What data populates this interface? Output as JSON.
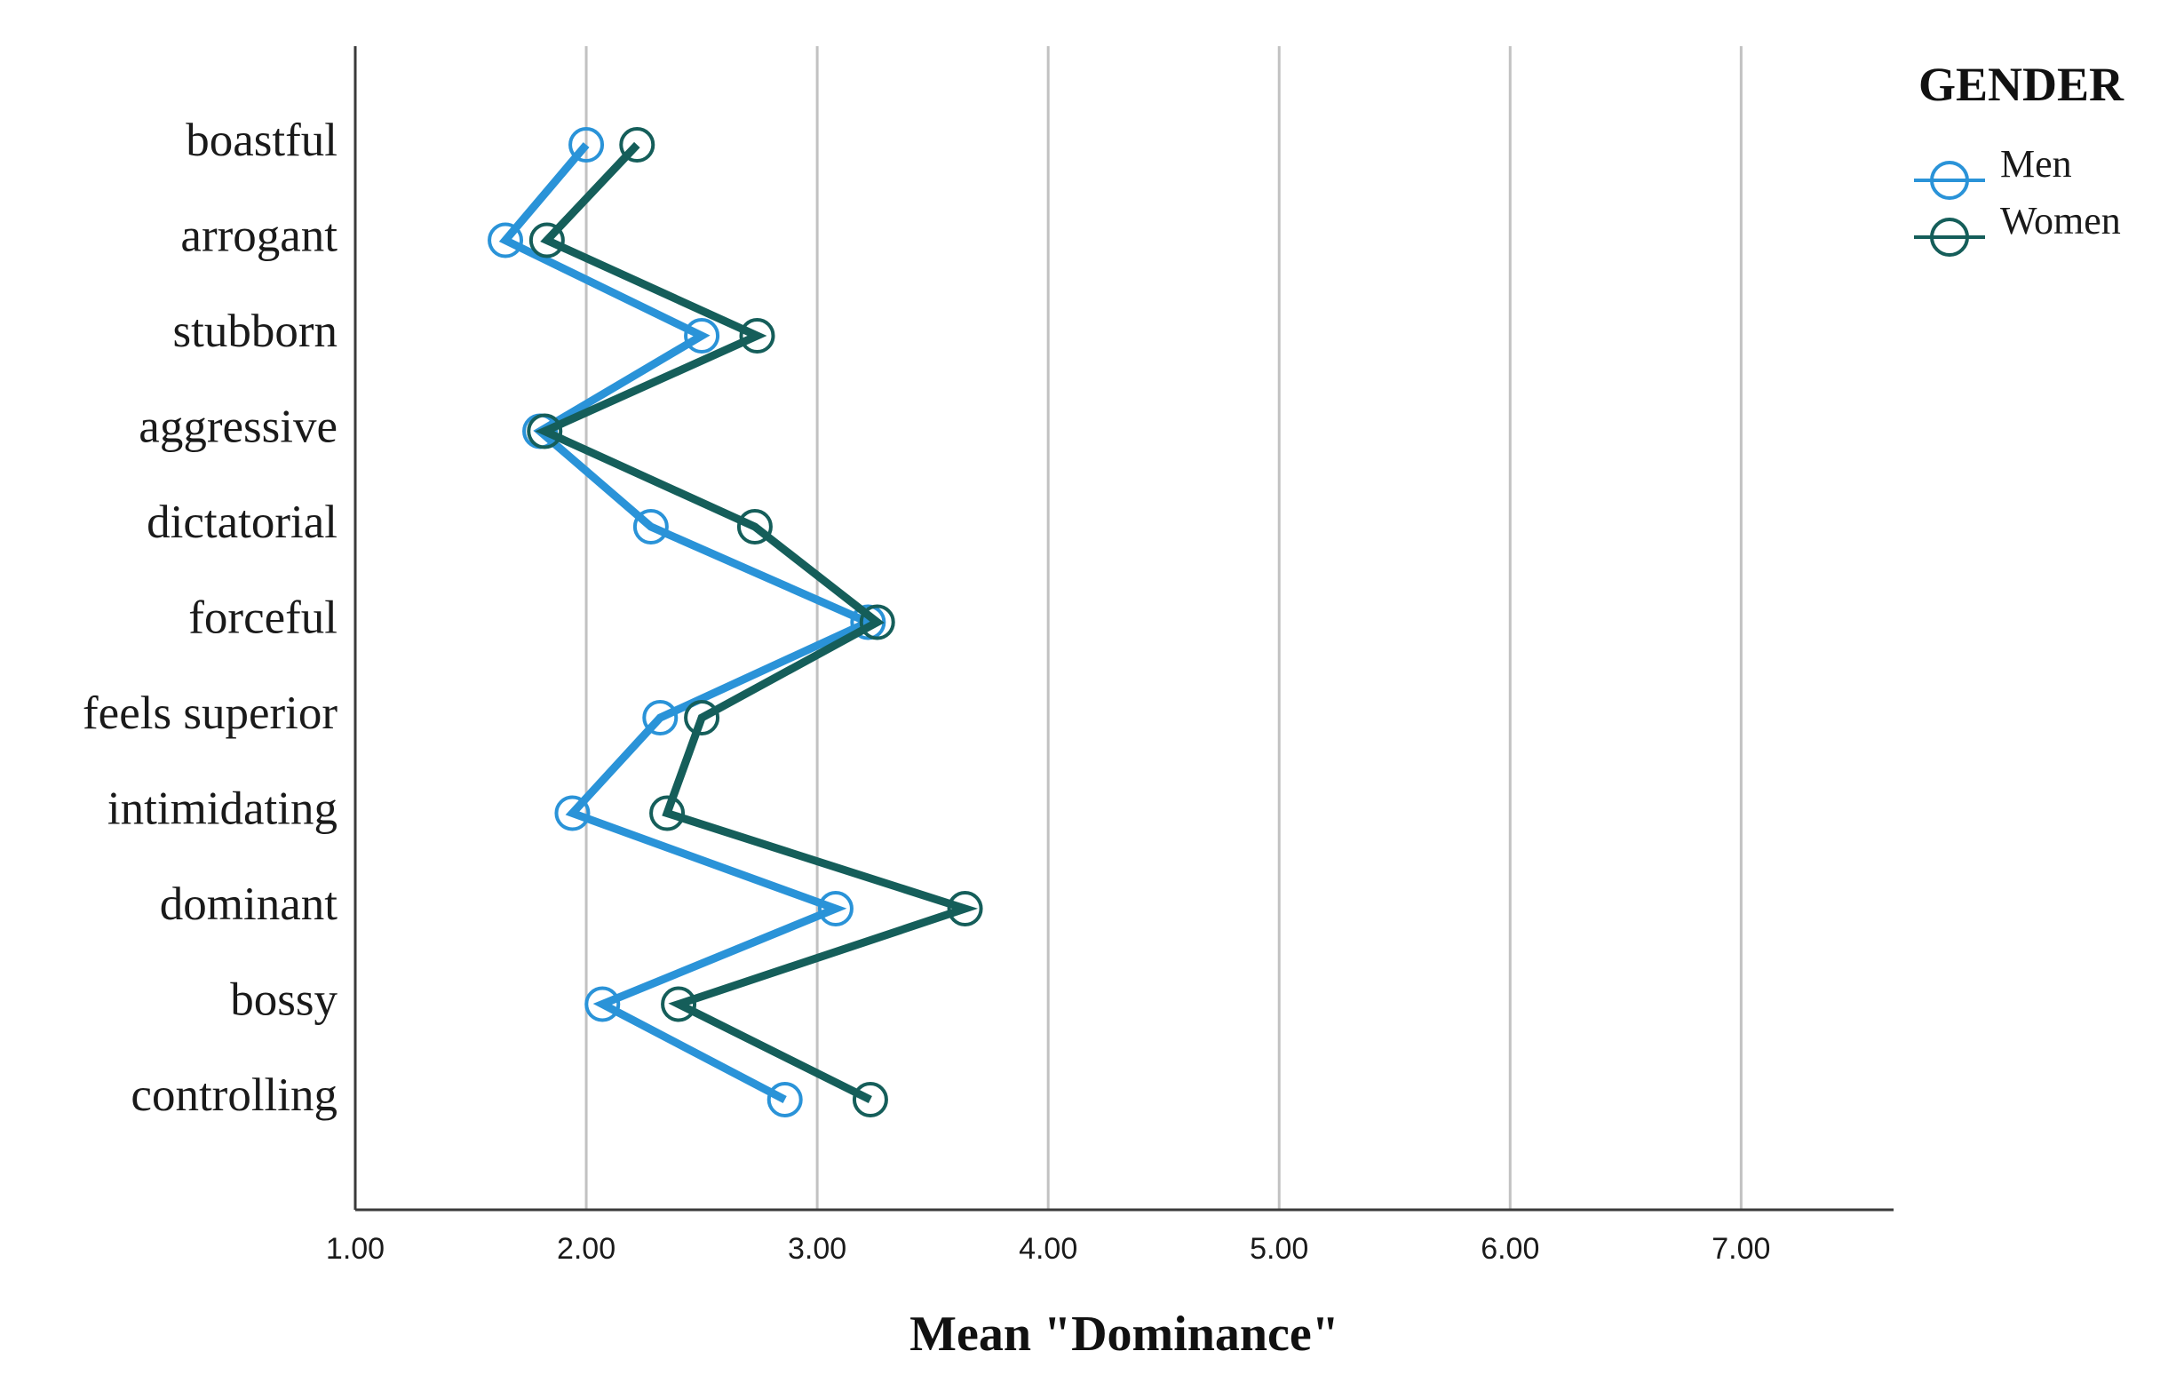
{
  "chart_data": {
    "type": "line",
    "orientation": "horizontal",
    "xlabel": "Mean \"Dominance\"",
    "xlim": [
      1,
      7.66
    ],
    "xticks": [
      1,
      2,
      3,
      4,
      5,
      6,
      7
    ],
    "xtick_labels": [
      "1.00",
      "2.00",
      "3.00",
      "4.00",
      "5.00",
      "6.00",
      "7.00"
    ],
    "grid": "vertical",
    "categories": [
      "boastful",
      "arrogant",
      "stubborn",
      "aggressive",
      "dictatorial",
      "forceful",
      "feels superior",
      "intimidating",
      "dominant",
      "bossy",
      "controlling"
    ],
    "legend": {
      "title": "GENDER",
      "position": "top-right"
    },
    "series": [
      {
        "name": "Men",
        "color": "#2a93d8",
        "marker": "circle-open",
        "values": [
          2.0,
          1.65,
          2.5,
          1.8,
          2.28,
          3.22,
          2.32,
          1.94,
          3.08,
          2.07,
          2.86
        ]
      },
      {
        "name": "Women",
        "color": "#155e5a",
        "marker": "circle-open",
        "values": [
          2.22,
          1.83,
          2.74,
          1.82,
          2.73,
          3.26,
          2.5,
          2.35,
          3.64,
          2.4,
          3.23
        ]
      }
    ]
  }
}
